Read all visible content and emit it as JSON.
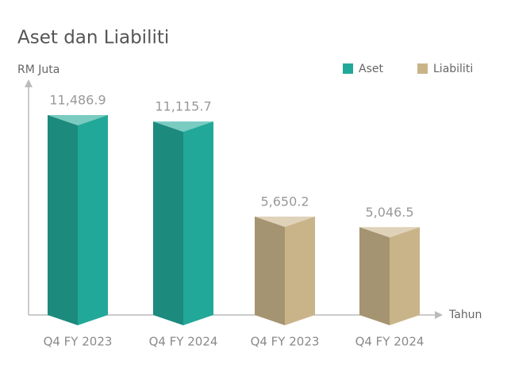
{
  "chart_data": {
    "type": "bar3d",
    "title": "Aset dan Liabiliti",
    "y_label": "RM Juta",
    "x_label": "Tahun",
    "categories": [
      "Q4 FY 2023",
      "Q4 FY 2024",
      "Q4 FY 2023",
      "Q4 FY 2024"
    ],
    "series": [
      {
        "name": "Aset",
        "color": "#22a898",
        "values": [
          11486.9,
          11115.7,
          null,
          null
        ],
        "value_labels": [
          "11,486.9",
          "11,115.7",
          null,
          null
        ]
      },
      {
        "name": "Liabiliti",
        "color": "#c9b48a",
        "values": [
          null,
          null,
          5650.2,
          5046.5
        ],
        "value_labels": [
          null,
          null,
          "5,650.2",
          "5,046.5"
        ]
      }
    ]
  }
}
